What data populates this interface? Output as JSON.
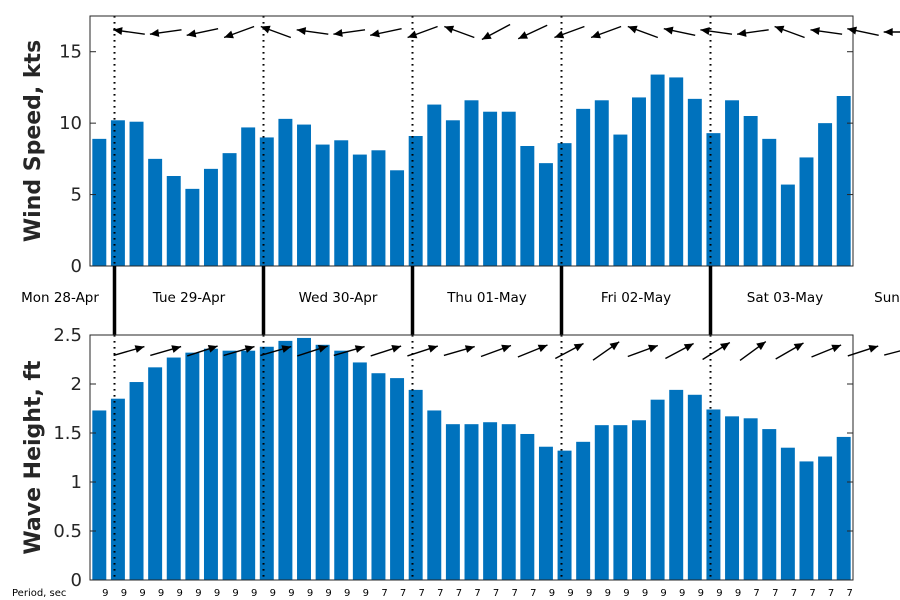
{
  "chart_data": [
    {
      "type": "bar",
      "ylabel": "Wind Speed, kts",
      "ylim": [
        0,
        17.5
      ],
      "yticks": [
        0,
        5,
        10,
        15
      ],
      "color": "#0072BD",
      "values": [
        8.9,
        10.2,
        10.1,
        7.5,
        6.3,
        5.4,
        6.8,
        7.9,
        9.7,
        9.0,
        10.3,
        9.9,
        8.5,
        8.8,
        7.8,
        8.1,
        6.7,
        9.1,
        11.3,
        10.2,
        11.6,
        10.8,
        10.8,
        8.4,
        7.2,
        8.6,
        11.0,
        11.6,
        9.2,
        11.8,
        13.4,
        13.2,
        11.7,
        9.3,
        11.6,
        10.5,
        8.9,
        5.7,
        7.6,
        10.0,
        11.9
      ],
      "direction_arrows": [
        172,
        188,
        192,
        200,
        160,
        172,
        188,
        192,
        200,
        160,
        208,
        205,
        200,
        200,
        160,
        168,
        172,
        188,
        160,
        172,
        168,
        180,
        180,
        175,
        178,
        180
      ]
    },
    {
      "type": "bar",
      "ylabel": "Wave Height, ft",
      "ylim": [
        0,
        2.5
      ],
      "yticks": [
        "0",
        "0.5",
        "1",
        "1.5",
        "2",
        "2.5"
      ],
      "color": "#0072BD",
      "values": [
        1.73,
        1.85,
        2.02,
        2.17,
        2.27,
        2.32,
        2.36,
        2.34,
        2.34,
        2.38,
        2.44,
        2.47,
        2.4,
        2.34,
        2.22,
        2.11,
        2.06,
        1.94,
        1.73,
        1.59,
        1.59,
        1.61,
        1.59,
        1.49,
        1.36,
        1.32,
        1.41,
        1.58,
        1.58,
        1.63,
        1.84,
        1.94,
        1.89,
        1.74,
        1.67,
        1.65,
        1.54,
        1.35,
        1.21,
        1.26,
        1.46
      ],
      "direction_arrows": [
        16,
        16,
        18,
        16,
        16,
        18,
        16,
        18,
        18,
        16,
        20,
        22,
        28,
        35,
        20,
        28,
        32,
        36,
        30,
        22,
        18,
        15,
        17,
        20,
        22,
        26
      ]
    }
  ],
  "days": [
    "Mon 28-Apr",
    "Tue 29-Apr",
    "Wed 30-Apr",
    "Thu 01-May",
    "Fri 02-May",
    "Sat 03-May",
    "Sun"
  ],
  "period_label": "Period, sec",
  "periods": [
    "9",
    "9",
    "9",
    "9",
    "9",
    "9",
    "9",
    "9",
    "9",
    "9",
    "9",
    "9",
    "9",
    "9",
    "9",
    "7",
    "7",
    "7",
    "7",
    "7",
    "7",
    "7",
    "7",
    "7",
    "9",
    "9",
    "9",
    "9",
    "9",
    "9",
    "9",
    "9",
    "9",
    "9",
    "9",
    "7",
    "7",
    "7",
    "7",
    "7",
    "7"
  ]
}
